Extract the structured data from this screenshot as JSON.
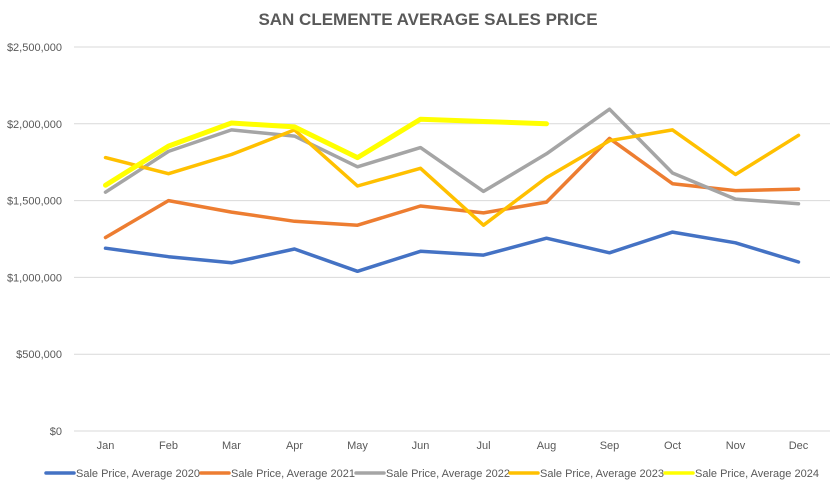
{
  "chart_data": {
    "type": "line",
    "title": "SAN CLEMENTE AVERAGE SALES PRICE",
    "xlabel": "",
    "ylabel": "",
    "ylim": [
      0,
      2500000
    ],
    "ytick_values": [
      0,
      500000,
      1000000,
      1500000,
      2000000,
      2500000
    ],
    "ytick_labels": [
      "$0",
      "$500,000",
      "$1,000,000",
      "$1,500,000",
      "$2,000,000",
      "$2,500,000"
    ],
    "grid": true,
    "legend_position": "bottom",
    "categories": [
      "Jan",
      "Feb",
      "Mar",
      "Apr",
      "May",
      "Jun",
      "Jul",
      "Aug",
      "Sep",
      "Oct",
      "Nov",
      "Dec"
    ],
    "series": [
      {
        "name": "Sale Price, Average 2020",
        "color": "#4472c4",
        "values": [
          1190000,
          1135000,
          1095000,
          1185000,
          1040000,
          1170000,
          1145000,
          1255000,
          1160000,
          1295000,
          1225000,
          1100000
        ]
      },
      {
        "name": "Sale Price, Average 2021",
        "color": "#ed7d31",
        "values": [
          1260000,
          1500000,
          1425000,
          1365000,
          1340000,
          1465000,
          1420000,
          1490000,
          1905000,
          1610000,
          1565000,
          1575000
        ]
      },
      {
        "name": "Sale Price, Average 2022",
        "color": "#a5a5a5",
        "values": [
          1555000,
          1820000,
          1960000,
          1920000,
          1720000,
          1845000,
          1560000,
          1805000,
          2095000,
          1680000,
          1510000,
          1480000
        ]
      },
      {
        "name": "Sale Price, Average 2023",
        "color": "#ffc000",
        "values": [
          1780000,
          1675000,
          1800000,
          1960000,
          1595000,
          1710000,
          1340000,
          1650000,
          1890000,
          1960000,
          1670000,
          1925000
        ]
      },
      {
        "name": "Sale Price, Average 2024",
        "color": "#ffff00",
        "values": [
          1600000,
          1855000,
          2005000,
          1980000,
          1780000,
          2030000,
          2015000,
          2000000,
          null,
          null,
          null,
          null
        ]
      }
    ]
  }
}
